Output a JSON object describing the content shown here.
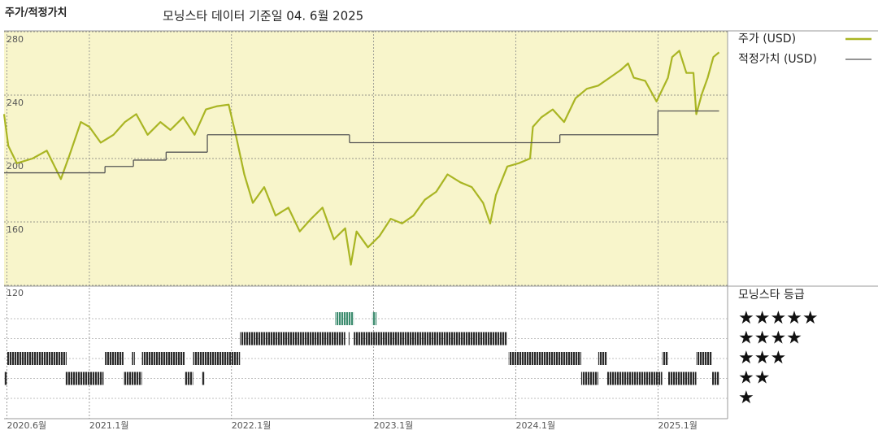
{
  "chart_data": {
    "type": "line",
    "title": "주가/적정가치",
    "subtitle": "모닝스타 데이터 기준일 04. 6월 2025",
    "xlim": [
      2020.4,
      2025.49
    ],
    "ylim": [
      120,
      280
    ],
    "yticks": [
      280,
      240,
      200,
      160,
      120
    ],
    "xticks": [
      {
        "value": 2020.42,
        "label": "2020.6월"
      },
      {
        "value": 2021.0,
        "label": "2021.1월"
      },
      {
        "value": 2022.0,
        "label": "2022.1월"
      },
      {
        "value": 2023.0,
        "label": "2023.1월"
      },
      {
        "value": 2024.0,
        "label": "2024.1월"
      },
      {
        "value": 2025.0,
        "label": "2025.1월"
      }
    ],
    "grid": true,
    "background": "#f8f5cb",
    "series": [
      {
        "name": "주가 (USD)",
        "color": "#a9b523",
        "x": [
          2020.4,
          2020.43,
          2020.49,
          2020.6,
          2020.7,
          2020.8,
          2020.86,
          2020.94,
          2021.0,
          2021.08,
          2021.17,
          2021.25,
          2021.33,
          2021.41,
          2021.5,
          2021.57,
          2021.66,
          2021.74,
          2021.82,
          2021.9,
          2021.98,
          2022.03,
          2022.09,
          2022.15,
          2022.23,
          2022.31,
          2022.4,
          2022.48,
          2022.56,
          2022.64,
          2022.72,
          2022.8,
          2022.84,
          2022.88,
          2022.96,
          2023.04,
          2023.12,
          2023.2,
          2023.28,
          2023.36,
          2023.44,
          2023.52,
          2023.61,
          2023.69,
          2023.77,
          2023.82,
          2023.86,
          2023.94,
          2024.02,
          2024.1,
          2024.12,
          2024.18,
          2024.26,
          2024.34,
          2024.42,
          2024.5,
          2024.58,
          2024.66,
          2024.74,
          2024.79,
          2024.83,
          2024.91,
          2024.99,
          2025.07,
          2025.1,
          2025.15,
          2025.2,
          2025.25,
          2025.27,
          2025.31,
          2025.35,
          2025.39,
          2025.43
        ],
        "values": [
          228,
          208,
          197,
          200,
          205,
          187,
          202,
          223,
          220,
          210,
          215,
          223,
          228,
          215,
          223,
          218,
          226,
          215,
          231,
          233,
          234,
          215,
          190,
          172,
          182,
          164,
          169,
          154,
          162,
          169,
          149,
          156,
          133,
          154,
          144,
          151,
          162,
          159,
          164,
          174,
          179,
          190,
          185,
          182,
          172,
          159,
          177,
          195,
          197,
          200,
          220,
          226,
          231,
          223,
          238,
          244,
          246,
          251,
          256,
          260,
          251,
          249,
          236,
          251,
          264,
          268,
          254,
          254,
          228,
          241,
          251,
          264,
          267
        ]
      },
      {
        "name": "적정가치 (USD)",
        "color": "#555555",
        "step": "post",
        "x": [
          2020.4,
          2021.11,
          2021.31,
          2021.54,
          2021.83,
          2022.83,
          2024.31,
          2025.0,
          2025.43
        ],
        "values": [
          191,
          195,
          199,
          204,
          215,
          210,
          215,
          230,
          230
        ]
      }
    ],
    "rating": {
      "title": "모닝스타 등급",
      "levels": [
        5,
        4,
        3,
        2,
        1
      ],
      "labels": [
        "★★★★★",
        "★★★★",
        "★★★",
        "★★",
        "★"
      ],
      "level_colors": [
        "#3d8c6f",
        "#2b2b2b",
        "#2b2b2b",
        "#2b2b2b",
        "#2b2b2b"
      ],
      "periods": [
        {
          "start": 2022.73,
          "end": 2022.86,
          "stars": 5
        },
        {
          "start": 2022.99,
          "end": 2023.02,
          "stars": 5
        },
        {
          "start": 2022.06,
          "end": 2022.8,
          "stars": 4
        },
        {
          "start": 2022.82,
          "end": 2022.83,
          "stars": 4
        },
        {
          "start": 2022.86,
          "end": 2023.94,
          "stars": 4
        },
        {
          "start": 2020.42,
          "end": 2020.84,
          "stars": 3
        },
        {
          "start": 2021.11,
          "end": 2021.24,
          "stars": 3
        },
        {
          "start": 2021.3,
          "end": 2021.32,
          "stars": 3
        },
        {
          "start": 2021.37,
          "end": 2021.67,
          "stars": 3
        },
        {
          "start": 2021.73,
          "end": 2022.06,
          "stars": 3
        },
        {
          "start": 2023.95,
          "end": 2024.46,
          "stars": 3
        },
        {
          "start": 2024.58,
          "end": 2024.64,
          "stars": 3
        },
        {
          "start": 2025.03,
          "end": 2025.07,
          "stars": 3
        },
        {
          "start": 2025.27,
          "end": 2025.38,
          "stars": 3
        },
        {
          "start": 2020.4,
          "end": 2020.42,
          "stars": 2
        },
        {
          "start": 2020.83,
          "end": 2021.1,
          "stars": 2
        },
        {
          "start": 2021.24,
          "end": 2021.37,
          "stars": 2
        },
        {
          "start": 2021.67,
          "end": 2021.73,
          "stars": 2
        },
        {
          "start": 2021.79,
          "end": 2021.81,
          "stars": 2
        },
        {
          "start": 2024.46,
          "end": 2024.58,
          "stars": 2
        },
        {
          "start": 2024.64,
          "end": 2025.03,
          "stars": 2
        },
        {
          "start": 2025.07,
          "end": 2025.27,
          "stars": 2
        },
        {
          "start": 2025.38,
          "end": 2025.43,
          "stars": 2
        }
      ]
    }
  }
}
